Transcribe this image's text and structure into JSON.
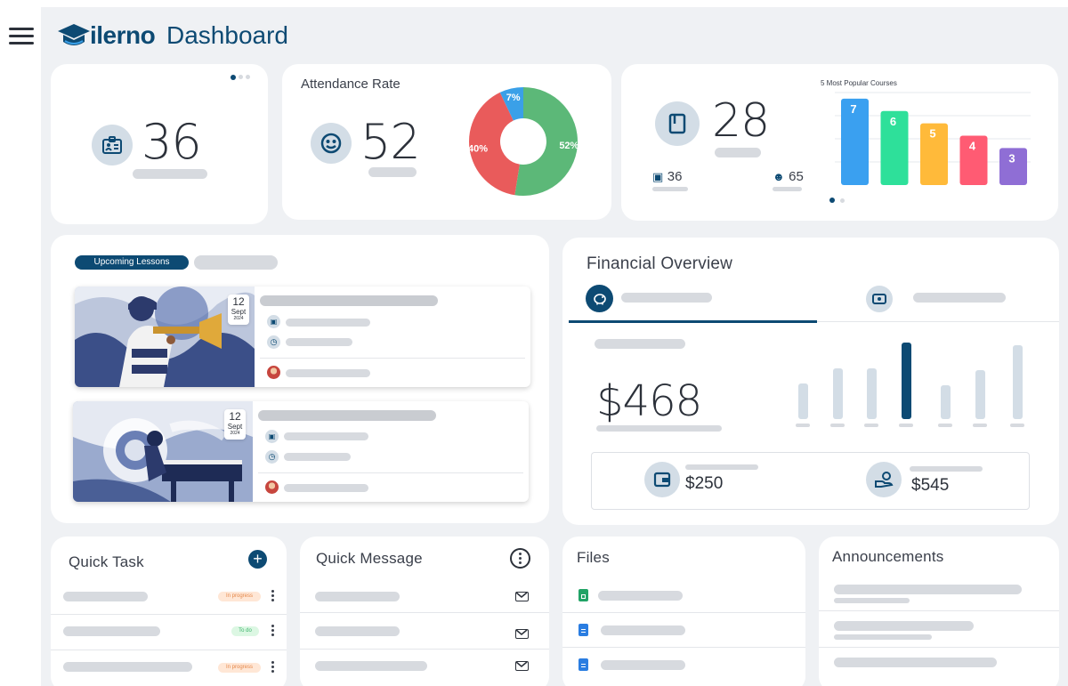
{
  "header": {
    "logo_text": "ilerno",
    "title": "Dashboard",
    "menu_icon": "hamburger-menu-icon",
    "brand_color": "#0d4a73"
  },
  "stats": {
    "card1": {
      "value": "36",
      "icon": "id-badge-icon"
    },
    "attendance": {
      "label": "Attendance Rate",
      "value": "52",
      "icon": "face-icon"
    },
    "courses": {
      "value": "28",
      "icon": "book-icon",
      "sub1": "36",
      "sub1_icon": "id-badge-icon",
      "sub2": "65",
      "sub2_icon": "face-icon"
    }
  },
  "chart_data": [
    {
      "type": "pie",
      "categories": [
        "",
        "",
        ""
      ],
      "values": [
        52,
        40,
        7
      ],
      "labels": [
        "52%",
        "40%",
        "7%"
      ],
      "colors": [
        "#5cb878",
        "#e95b5b",
        "#3aa0e8"
      ]
    },
    {
      "type": "bar",
      "title": "5 Most Popular Courses",
      "categories": [
        "",
        "",
        "",
        "",
        ""
      ],
      "values": [
        7,
        6,
        5,
        4,
        3
      ],
      "data_labels": [
        "7",
        "6",
        "5",
        "4",
        "3"
      ],
      "colors": [
        "#3aa0f0",
        "#2ee09a",
        "#ffba3a",
        "#ff5b73",
        "#8f6ed5"
      ],
      "ylim": [
        0,
        7.5
      ],
      "grid": true
    }
  ],
  "lessons": {
    "tab_label": "Upcoming Lessons",
    "items": [
      {
        "day": "12",
        "month": "Sept",
        "year": "2024",
        "scene": "trumpet"
      },
      {
        "day": "12",
        "month": "Sept",
        "year": "2024",
        "scene": "piano"
      }
    ]
  },
  "finance": {
    "title": "Financial Overview",
    "tab1_icon": "piggy-bank-icon",
    "tab2_icon": "cash-icon",
    "amount": "$468",
    "bars": [
      0.47,
      0.66,
      0.66,
      1.0,
      0.44,
      0.64,
      0.96
    ],
    "highlight_index": 3,
    "stat1": {
      "value": "$250",
      "icon": "wallet-icon"
    },
    "stat2": {
      "value": "$545",
      "icon": "hand-coin-icon"
    }
  },
  "quick_task": {
    "title": "Quick Task",
    "add_icon": "plus-circle-icon",
    "items": [
      {
        "status": "In progress",
        "status_color": "#ffe7d6",
        "status_text_color": "#e5884a"
      },
      {
        "status": "To do",
        "status_color": "#dcf7e3",
        "status_text_color": "#3bb36a"
      },
      {
        "status": "In progress",
        "status_color": "#ffe7d6",
        "status_text_color": "#e5884a"
      }
    ]
  },
  "quick_message": {
    "title": "Quick Message",
    "more_icon": "more-vertical-circle-icon",
    "items": [
      "mail-icon",
      "mail-icon",
      "mail-icon"
    ]
  },
  "files": {
    "title": "Files",
    "items": [
      "sheet-file-icon",
      "doc-file-icon",
      "doc-file-icon"
    ]
  },
  "announcements": {
    "title": "Announcements"
  }
}
